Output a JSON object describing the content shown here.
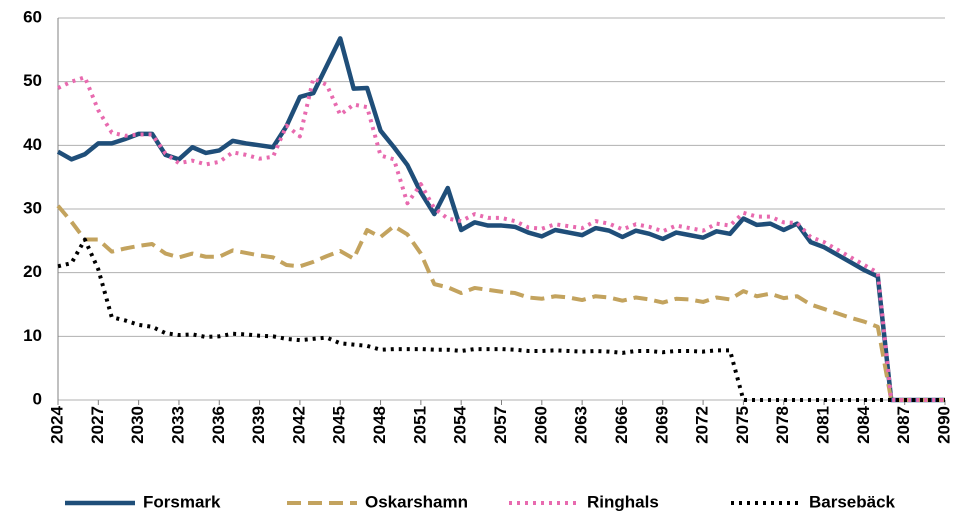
{
  "chart_data": {
    "type": "line",
    "x": [
      2024,
      2025,
      2026,
      2027,
      2028,
      2029,
      2030,
      2031,
      2032,
      2033,
      2034,
      2035,
      2036,
      2037,
      2038,
      2039,
      2040,
      2041,
      2042,
      2043,
      2044,
      2045,
      2046,
      2047,
      2048,
      2049,
      2050,
      2051,
      2052,
      2053,
      2054,
      2055,
      2056,
      2057,
      2058,
      2059,
      2060,
      2061,
      2062,
      2063,
      2064,
      2065,
      2066,
      2067,
      2068,
      2069,
      2070,
      2071,
      2072,
      2073,
      2074,
      2075,
      2076,
      2077,
      2078,
      2079,
      2080,
      2081,
      2082,
      2083,
      2084,
      2085,
      2086,
      2087,
      2088,
      2089,
      2090
    ],
    "xlim": [
      2024,
      2090
    ],
    "xticks": [
      2024,
      2027,
      2030,
      2033,
      2036,
      2039,
      2042,
      2045,
      2048,
      2051,
      2054,
      2057,
      2060,
      2063,
      2066,
      2069,
      2072,
      2075,
      2078,
      2081,
      2084,
      2087,
      2090
    ],
    "ylim": [
      0,
      60
    ],
    "yticks": [
      0,
      10,
      20,
      30,
      40,
      50,
      60
    ],
    "grid": true,
    "legend": "bottom",
    "series": [
      {
        "name": "Forsmark",
        "color": "#1f4e79",
        "dash": "solid",
        "values": [
          39,
          37.8,
          38.6,
          40.3,
          40.3,
          41,
          41.8,
          41.8,
          38.5,
          37.8,
          39.7,
          38.8,
          39.2,
          40.7,
          40.3,
          40,
          39.7,
          43,
          47.6,
          48.2,
          52.5,
          56.8,
          48.9,
          49,
          42.3,
          39.7,
          36.9,
          32.6,
          29.2,
          33.3,
          26.7,
          27.9,
          27.4,
          27.4,
          27.2,
          26.3,
          25.7,
          26.7,
          26.3,
          25.9,
          27,
          26.6,
          25.6,
          26.6,
          26.1,
          25.3,
          26.3,
          25.9,
          25.5,
          26.5,
          26.1,
          28.5,
          27.5,
          27.7,
          26.7,
          27.7,
          24.8,
          24,
          22.8,
          21.6,
          20.4,
          19.4,
          0,
          0,
          0,
          0,
          0
        ]
      },
      {
        "name": "Oskarshamn",
        "color": "#c3a35e",
        "dash": "dashed",
        "values": [
          30.5,
          28,
          25.2,
          25.2,
          23.3,
          23.8,
          24.2,
          24.5,
          23,
          22.4,
          23,
          22.5,
          22.5,
          23.5,
          23.1,
          22.7,
          22.4,
          21.2,
          21,
          21.7,
          22.6,
          23.4,
          22.2,
          26.7,
          25.6,
          27.3,
          26,
          23,
          18.2,
          17.7,
          16.8,
          17.6,
          17.3,
          17,
          16.8,
          16.1,
          15.9,
          16.3,
          16.1,
          15.7,
          16.3,
          16.1,
          15.6,
          16.1,
          15.8,
          15.3,
          15.9,
          15.8,
          15.4,
          16.1,
          15.8,
          17.1,
          16.3,
          16.7,
          16,
          16.3,
          15,
          14.3,
          13.6,
          12.9,
          12.3,
          11.5,
          0,
          0,
          0,
          0,
          0
        ]
      },
      {
        "name": "Ringhals",
        "color": "#e86aaf",
        "dash": "dotted",
        "values": [
          49,
          50,
          50.7,
          45.5,
          42,
          41.5,
          41.7,
          41.7,
          38.7,
          37.2,
          37.6,
          37,
          37.4,
          38.9,
          38.5,
          37.9,
          38.2,
          43.1,
          41.4,
          50.5,
          49.5,
          44.8,
          46.4,
          46,
          38.4,
          37.8,
          30.9,
          33.9,
          30.1,
          28.5,
          28.1,
          29.2,
          28.6,
          28.6,
          28.1,
          27.1,
          26.9,
          27.6,
          27.3,
          27,
          28.1,
          27.7,
          26.8,
          27.6,
          27.2,
          26.5,
          27.4,
          27,
          26.6,
          27.7,
          27.4,
          29.4,
          28.8,
          28.8,
          27.9,
          27.8,
          25.6,
          24.8,
          23.6,
          22.4,
          21.2,
          20,
          0,
          0,
          0,
          0,
          0
        ]
      },
      {
        "name": "Barsebäck",
        "color": "#000000",
        "dash": "dotted",
        "values": [
          21,
          21.5,
          25.2,
          20.5,
          13,
          12.5,
          11.8,
          11.5,
          10.5,
          10.2,
          10.3,
          9.9,
          10,
          10.4,
          10.3,
          10.1,
          10,
          9.6,
          9.4,
          9.6,
          9.8,
          8.9,
          8.7,
          8.5,
          7.9,
          8,
          8,
          8,
          7.9,
          7.9,
          7.7,
          8,
          8,
          8,
          7.9,
          7.7,
          7.7,
          7.8,
          7.7,
          7.6,
          7.7,
          7.6,
          7.4,
          7.7,
          7.7,
          7.5,
          7.7,
          7.7,
          7.6,
          7.8,
          7.8,
          0,
          0,
          0,
          0,
          0,
          0,
          0,
          0,
          0,
          0,
          0,
          0,
          0,
          0,
          0,
          0
        ]
      }
    ]
  }
}
